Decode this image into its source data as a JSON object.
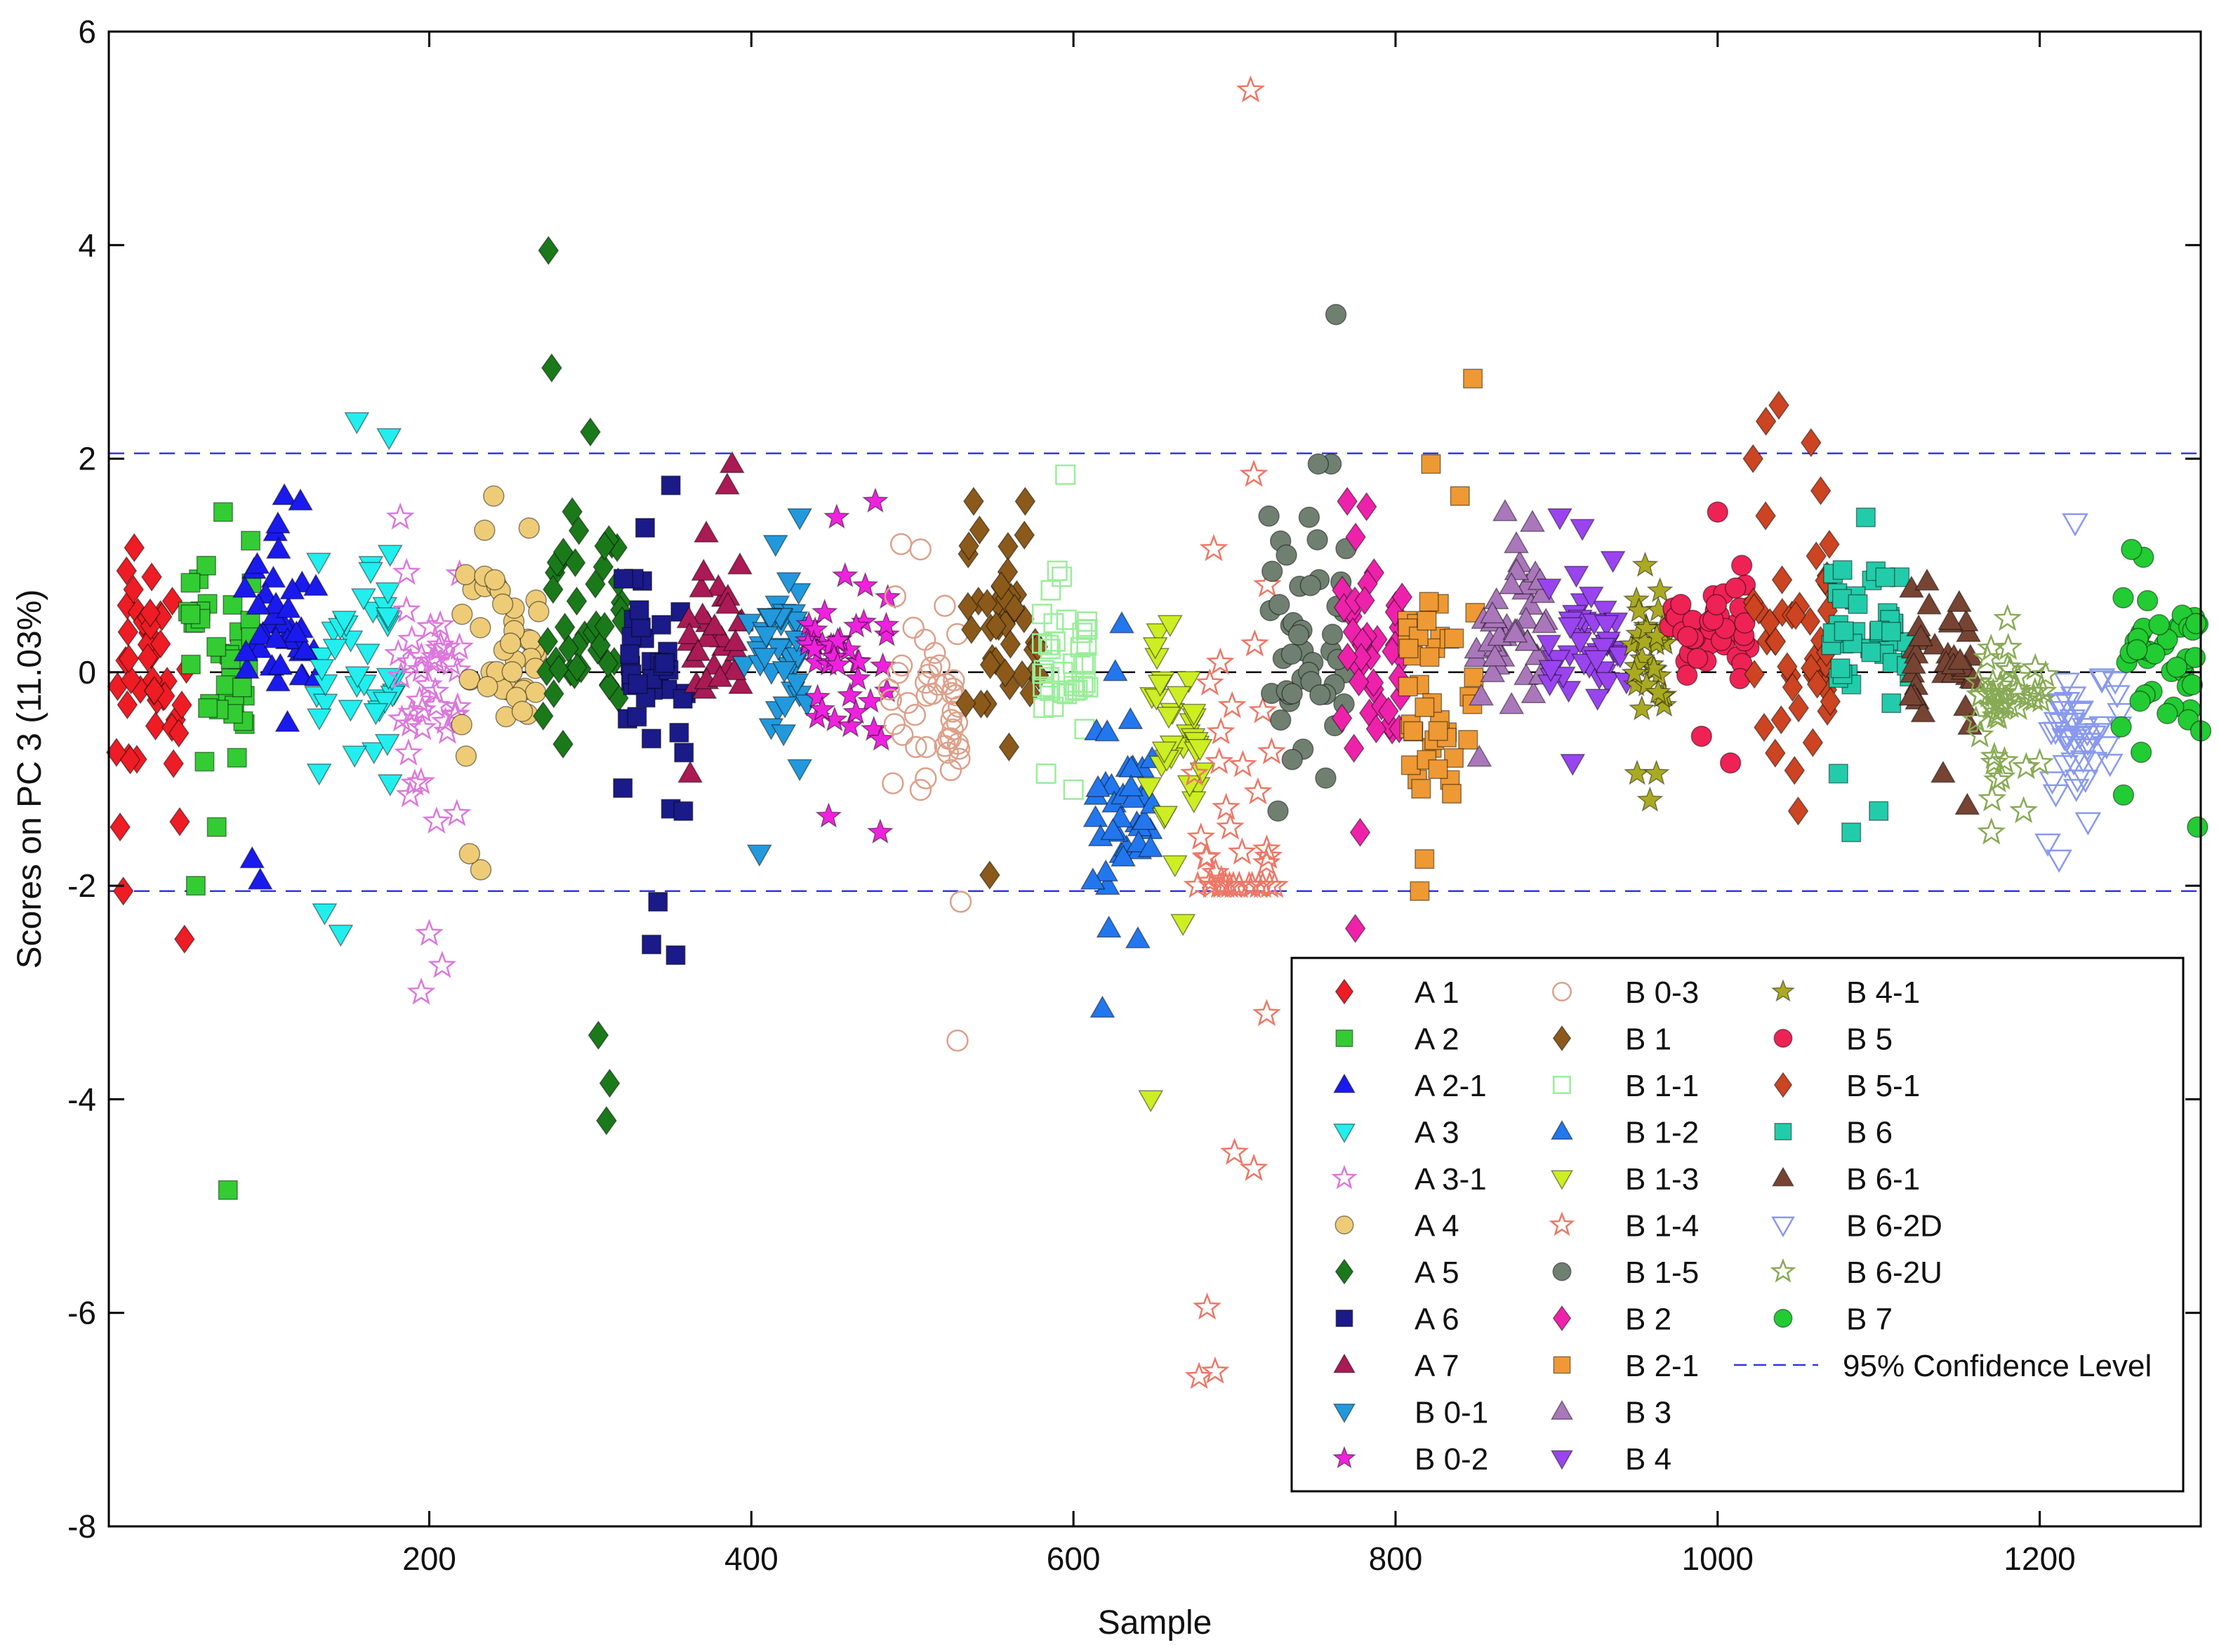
{
  "chart_data": {
    "type": "scatter",
    "title": "",
    "xlabel": "Sample",
    "ylabel": "Scores on PC 3 (11.03%)",
    "xlim": [
      1,
      1300
    ],
    "ylim": [
      -8,
      6
    ],
    "xticks": [
      200,
      400,
      600,
      800,
      1000,
      1200
    ],
    "yticks": [
      -8,
      -6,
      -4,
      -2,
      0,
      2,
      4,
      6
    ],
    "zero_line": 0,
    "confidence_level": {
      "name": "95% Confidence Level",
      "upper": 2.05,
      "lower": -2.05,
      "color": "#3333ee"
    },
    "legend_position": "bottom-right",
    "series": [
      {
        "name": "A 1",
        "marker": "diamond",
        "color": "#ee1c24",
        "fill": true,
        "x_range": [
          1,
          50
        ],
        "center": 0.0,
        "spread": 0.85,
        "n": 42,
        "extremes": [
          [
            10,
            -2.05
          ],
          [
            48,
            -2.5
          ],
          [
            8,
            -1.45
          ],
          [
            45,
            -1.4
          ],
          [
            12,
            0.95
          ]
        ]
      },
      {
        "name": "A 2",
        "marker": "square",
        "color": "#33cc33",
        "fill": true,
        "x_range": [
          50,
          90
        ],
        "center": 0.2,
        "spread": 0.75,
        "n": 38,
        "extremes": [
          [
            75,
            -4.85
          ],
          [
            55,
            -2.0
          ],
          [
            72,
            1.5
          ],
          [
            68,
            -1.45
          ]
        ]
      },
      {
        "name": "A 2-1",
        "marker": "triangle",
        "color": "#1a1aee",
        "fill": true,
        "x_range": [
          85,
          130
        ],
        "center": 0.4,
        "spread": 0.7,
        "n": 40,
        "extremes": [
          [
            95,
            -1.95
          ],
          [
            110,
            1.65
          ],
          [
            120,
            1.6
          ],
          [
            90,
            -1.75
          ]
        ]
      },
      {
        "name": "A 3",
        "marker": "tri-down",
        "color": "#22eeee",
        "fill": true,
        "x_range": [
          130,
          180
        ],
        "center": 0.2,
        "spread": 0.9,
        "n": 42,
        "extremes": [
          [
            155,
            2.35
          ],
          [
            175,
            2.2
          ],
          [
            145,
            -2.45
          ],
          [
            135,
            -2.25
          ]
        ]
      },
      {
        "name": "A 3-1",
        "marker": "star",
        "color": "#dd77dd",
        "fill": false,
        "x_range": [
          180,
          220
        ],
        "center": -0.2,
        "spread": 0.9,
        "n": 40,
        "extremes": [
          [
            195,
            -3.0
          ],
          [
            208,
            -2.75
          ],
          [
            182,
            1.45
          ],
          [
            200,
            -2.45
          ]
        ]
      },
      {
        "name": "A 4",
        "marker": "circle",
        "color": "#eecc77",
        "fill": true,
        "x_range": [
          220,
          270
        ],
        "center": 0.3,
        "spread": 0.8,
        "n": 42,
        "extremes": [
          [
            240,
            1.65
          ],
          [
            232,
            -1.85
          ],
          [
            225,
            -1.7
          ],
          [
            262,
            1.35
          ]
        ]
      },
      {
        "name": "A 5",
        "marker": "diamond",
        "color": "#1a7a1a",
        "fill": true,
        "x_range": [
          270,
          320
        ],
        "center": 0.5,
        "spread": 1.0,
        "n": 44,
        "extremes": [
          [
            274,
            3.95
          ],
          [
            276,
            2.85
          ],
          [
            310,
            -4.2
          ],
          [
            305,
            -3.4
          ],
          [
            312,
            -3.85
          ],
          [
            300,
            2.25
          ]
        ]
      },
      {
        "name": "A 6",
        "marker": "square",
        "color": "#1a1a88",
        "fill": true,
        "x_range": [
          320,
          360
        ],
        "center": 0.0,
        "spread": 0.85,
        "n": 40,
        "extremes": [
          [
            353,
            -2.65
          ],
          [
            338,
            -2.55
          ],
          [
            342,
            -2.15
          ],
          [
            350,
            1.75
          ]
        ]
      },
      {
        "name": "A 7",
        "marker": "triangle",
        "color": "#aa1a55",
        "fill": true,
        "x_range": [
          360,
          395
        ],
        "center": 0.4,
        "spread": 0.55,
        "n": 32,
        "extremes": [
          [
            388,
            1.95
          ],
          [
            385,
            1.75
          ],
          [
            362,
            -0.95
          ],
          [
            372,
            1.3
          ]
        ]
      },
      {
        "name": "B 0-1",
        "marker": "tri-down",
        "color": "#2299dd",
        "fill": true,
        "x_range": [
          395,
          435
        ],
        "center": 0.2,
        "spread": 0.6,
        "n": 38,
        "extremes": [
          [
            405,
            -1.7
          ],
          [
            430,
            1.45
          ],
          [
            430,
            -0.9
          ],
          [
            415,
            1.2
          ]
        ]
      },
      {
        "name": "B 0-2",
        "marker": "star",
        "color": "#ee22dd",
        "fill": true,
        "x_range": [
          435,
          485
        ],
        "center": 0.1,
        "spread": 0.6,
        "n": 40,
        "extremes": [
          [
            477,
            1.6
          ],
          [
            453,
            1.45
          ],
          [
            448,
            -1.35
          ],
          [
            480,
            -1.5
          ]
        ]
      },
      {
        "name": "B 0-3",
        "marker": "circle",
        "color": "#dda08a",
        "fill": false,
        "x_range": [
          485,
          530
        ],
        "center": -0.3,
        "spread": 0.8,
        "n": 44,
        "extremes": [
          [
            528,
            -3.45
          ],
          [
            530,
            -2.15
          ],
          [
            493,
            1.2
          ],
          [
            505,
            1.15
          ]
        ]
      },
      {
        "name": "B 1",
        "marker": "diamond",
        "color": "#8b5a1a",
        "fill": true,
        "x_range": [
          530,
          580
        ],
        "center": 0.3,
        "spread": 0.7,
        "n": 40,
        "extremes": [
          [
            548,
            -1.9
          ],
          [
            538,
            1.6
          ],
          [
            570,
            1.6
          ],
          [
            560,
            -0.7
          ]
        ]
      },
      {
        "name": "B 1-1",
        "marker": "square",
        "color": "#99ee99",
        "fill": false,
        "x_range": [
          580,
          610
        ],
        "center": 0.0,
        "spread": 0.6,
        "n": 36,
        "extremes": [
          [
            595,
            1.85
          ],
          [
            583,
            -0.95
          ],
          [
            600,
            -1.1
          ],
          [
            590,
            0.95
          ]
        ]
      },
      {
        "name": "B 1-2",
        "marker": "triangle",
        "color": "#2277ee",
        "fill": true,
        "x_range": [
          610,
          650
        ],
        "center": -1.2,
        "spread": 0.8,
        "n": 38,
        "extremes": [
          [
            618,
            -3.15
          ],
          [
            622,
            -2.4
          ],
          [
            640,
            -2.5
          ],
          [
            630,
            0.45
          ]
        ]
      },
      {
        "name": "B 1-3",
        "marker": "tri-down",
        "color": "#ccee22",
        "fill": true,
        "x_range": [
          645,
          680
        ],
        "center": -0.5,
        "spread": 0.75,
        "n": 34,
        "extremes": [
          [
            648,
            -4.0
          ],
          [
            668,
            -2.35
          ],
          [
            660,
            0.45
          ],
          [
            663,
            -1.8
          ]
        ]
      },
      {
        "name": "B 1-4",
        "marker": "star",
        "color": "#ee7766",
        "fill": false,
        "x_range": [
          675,
          725
        ],
        "center": -1.5,
        "spread": 2.0,
        "n": 40,
        "extremes": [
          [
            710,
            5.45
          ],
          [
            678,
            -6.6
          ],
          [
            688,
            -6.55
          ],
          [
            683,
            -5.95
          ],
          [
            700,
            -4.5
          ],
          [
            712,
            -4.65
          ],
          [
            720,
            -3.2
          ],
          [
            712,
            1.85
          ]
        ]
      },
      {
        "name": "B 1-5",
        "marker": "circle",
        "color": "#708070",
        "fill": true,
        "x_range": [
          720,
          770
        ],
        "center": 0.2,
        "spread": 0.85,
        "n": 44,
        "extremes": [
          [
            763,
            3.35
          ],
          [
            760,
            1.95
          ],
          [
            752,
            1.95
          ],
          [
            727,
            -1.3
          ]
        ]
      },
      {
        "name": "B 2",
        "marker": "diamond",
        "color": "#ee22aa",
        "fill": true,
        "x_range": [
          765,
          805
        ],
        "center": 0.2,
        "spread": 0.8,
        "n": 40,
        "extremes": [
          [
            775,
            -2.4
          ],
          [
            778,
            -1.5
          ],
          [
            770,
            1.6
          ],
          [
            782,
            1.55
          ]
        ]
      },
      {
        "name": "B 2-1",
        "marker": "square",
        "color": "#ee9933",
        "fill": true,
        "x_range": [
          805,
          850
        ],
        "center": -0.2,
        "spread": 0.8,
        "n": 42,
        "extremes": [
          [
            848,
            2.75
          ],
          [
            822,
            1.95
          ],
          [
            815,
            -2.05
          ],
          [
            818,
            -1.75
          ],
          [
            840,
            1.65
          ]
        ]
      },
      {
        "name": "B 3",
        "marker": "triangle",
        "color": "#aa77bb",
        "fill": true,
        "x_range": [
          850,
          895
        ],
        "center": 0.4,
        "spread": 0.5,
        "n": 40,
        "extremes": [
          [
            868,
            1.5
          ],
          [
            885,
            1.4
          ],
          [
            852,
            -0.8
          ],
          [
            875,
            1.2
          ]
        ]
      },
      {
        "name": "B 4",
        "marker": "tri-down",
        "color": "#9944ee",
        "fill": true,
        "x_range": [
          895,
          945
        ],
        "center": 0.3,
        "spread": 0.45,
        "n": 42,
        "extremes": [
          [
            902,
            1.45
          ],
          [
            916,
            1.35
          ],
          [
            910,
            -0.85
          ],
          [
            935,
            1.05
          ]
        ]
      },
      {
        "name": "B 4-1",
        "marker": "star",
        "color": "#aaaa22",
        "fill": true,
        "x_range": [
          945,
          970
        ],
        "center": 0.2,
        "spread": 0.55,
        "n": 30,
        "extremes": [
          [
            958,
            -1.2
          ],
          [
            950,
            -0.95
          ],
          [
            962,
            -0.95
          ],
          [
            955,
            1.0
          ]
        ]
      },
      {
        "name": "B 5",
        "marker": "circle",
        "color": "#ee2255",
        "fill": true,
        "x_range": [
          970,
          1020
        ],
        "center": 0.4,
        "spread": 0.45,
        "n": 44,
        "extremes": [
          [
            1000,
            1.5
          ],
          [
            1008,
            -0.85
          ],
          [
            990,
            -0.6
          ],
          [
            1015,
            1.0
          ]
        ]
      },
      {
        "name": "B 5-1",
        "marker": "diamond",
        "color": "#cc4422",
        "fill": true,
        "x_range": [
          1020,
          1070
        ],
        "center": 0.3,
        "spread": 1.0,
        "n": 42,
        "extremes": [
          [
            1038,
            2.5
          ],
          [
            1030,
            2.35
          ],
          [
            1022,
            2.0
          ],
          [
            1058,
            2.15
          ],
          [
            1050,
            -1.3
          ],
          [
            1064,
            1.7
          ]
        ]
      },
      {
        "name": "B 6",
        "marker": "square",
        "color": "#22ccaa",
        "fill": true,
        "x_range": [
          1070,
          1120
        ],
        "center": 0.4,
        "spread": 0.55,
        "n": 42,
        "extremes": [
          [
            1083,
            -1.5
          ],
          [
            1100,
            -1.3
          ],
          [
            1092,
            1.45
          ],
          [
            1075,
            -0.95
          ]
        ]
      },
      {
        "name": "B 6-1",
        "marker": "triangle",
        "color": "#774433",
        "fill": true,
        "x_range": [
          1120,
          1160
        ],
        "center": 0.1,
        "spread": 0.5,
        "n": 36,
        "extremes": [
          [
            1155,
            -1.25
          ],
          [
            1140,
            -0.95
          ],
          [
            1130,
            0.85
          ],
          [
            1150,
            0.65
          ]
        ]
      },
      {
        "name": "B 6-2D",
        "marker": "tri-down",
        "color": "#8899ee",
        "fill": false,
        "x_range": [
          1205,
          1250
        ],
        "center": -0.5,
        "spread": 0.55,
        "n": 44,
        "extremes": [
          [
            1222,
            1.4
          ],
          [
            1212,
            -1.75
          ],
          [
            1205,
            -1.6
          ],
          [
            1230,
            -1.4
          ]
        ]
      },
      {
        "name": "B 6-2U",
        "marker": "star",
        "color": "#88aa55",
        "fill": false,
        "x_range": [
          1160,
          1205
        ],
        "center": -0.4,
        "spread": 0.5,
        "n": 42,
        "extremes": [
          [
            1170,
            -1.5
          ],
          [
            1180,
            0.5
          ],
          [
            1200,
            -0.85
          ],
          [
            1190,
            -1.3
          ]
        ]
      },
      {
        "name": "B 7",
        "marker": "circle",
        "color": "#22cc33",
        "fill": true,
        "x_range": [
          1250,
          1300
        ],
        "center": 0.2,
        "spread": 0.5,
        "n": 44,
        "extremes": [
          [
            1257,
            1.15
          ],
          [
            1263,
            -0.75
          ],
          [
            1298,
            -1.45
          ],
          [
            1300,
            -0.55
          ],
          [
            1252,
            -1.15
          ]
        ]
      }
    ]
  }
}
